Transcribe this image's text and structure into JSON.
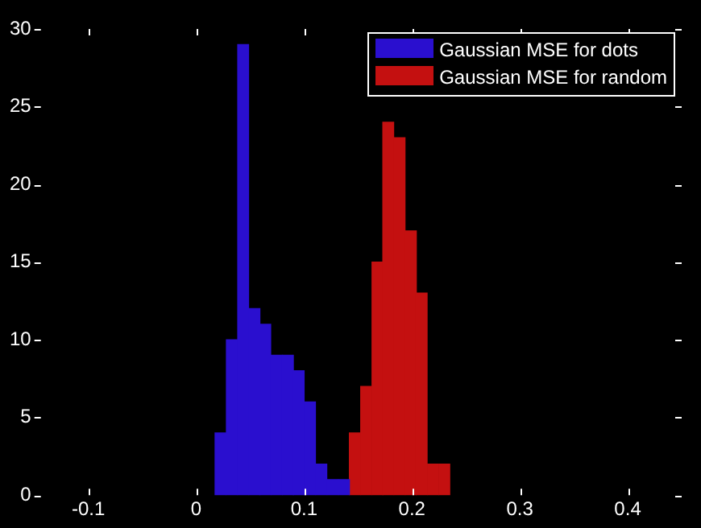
{
  "chart_data": {
    "type": "histogram",
    "bins": [
      0.017,
      0.028,
      0.038,
      0.049,
      0.059,
      0.069,
      0.08,
      0.09,
      0.1,
      0.111,
      0.121,
      0.132,
      0.142,
      0.152,
      0.163,
      0.173,
      0.183,
      0.194,
      0.204,
      0.214,
      0.225,
      0.235
    ],
    "series": [
      {
        "name": "Gaussian MSE for dots",
        "color": "#2a0fcf",
        "values": [
          4,
          10,
          29,
          12,
          11,
          9,
          9,
          8,
          6,
          2,
          1,
          1,
          null,
          null,
          null,
          null,
          null,
          null,
          null,
          null,
          null
        ]
      },
      {
        "name": "Gaussian MSE for random",
        "color": "#c41010",
        "values": [
          null,
          null,
          null,
          null,
          null,
          null,
          null,
          null,
          null,
          null,
          null,
          null,
          4,
          7,
          15,
          24,
          23,
          17,
          13,
          2,
          2
        ]
      }
    ],
    "xlim": [
      -0.1,
      0.4
    ],
    "xticks": [
      -0.1,
      0,
      0.1,
      0.2,
      0.3,
      0.4
    ],
    "ylim": [
      0,
      30
    ],
    "yticks": [
      0,
      5,
      10,
      15,
      20,
      25,
      30
    ],
    "grid": false,
    "legend": "top right"
  }
}
